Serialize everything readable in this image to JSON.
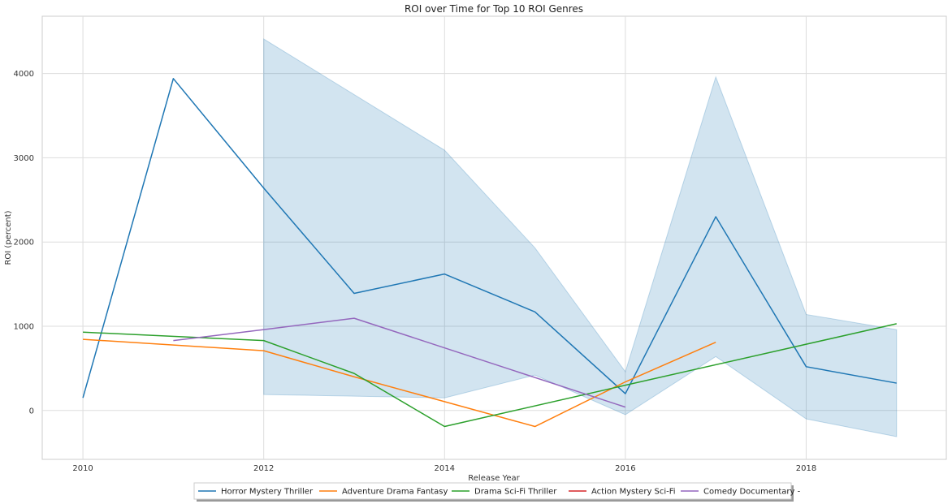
{
  "chart_data": {
    "type": "line",
    "title": "ROI over Time for Top 10 ROI Genres",
    "xlabel": "Release Year",
    "ylabel": "ROI (percent)",
    "xlim": [
      2009.55,
      2019.55
    ],
    "ylim": [
      -580,
      4680
    ],
    "xticks": [
      2010,
      2012,
      2014,
      2016,
      2018
    ],
    "yticks": [
      0,
      1000,
      2000,
      3000,
      4000
    ],
    "grid": true,
    "legend_placement": "bottom-center",
    "series": [
      {
        "name": "Horror Mystery Thriller",
        "color": "#1f77b4",
        "x": [
          2010,
          2011,
          2012,
          2013,
          2014,
          2015,
          2016,
          2017,
          2018,
          2019
        ],
        "y": [
          150,
          3940,
          2640,
          1390,
          1620,
          1170,
          200,
          2300,
          520,
          325
        ],
        "band": [
          {
            "x": 2012,
            "lo": 190,
            "hi": 4410
          },
          {
            "x": 2014,
            "lo": 150,
            "hi": 3090
          },
          {
            "x": 2015,
            "lo": 420,
            "hi": 1930
          },
          {
            "x": 2016,
            "lo": -50,
            "hi": 460
          },
          {
            "x": 2017,
            "lo": 640,
            "hi": 3960
          },
          {
            "x": 2018,
            "lo": -100,
            "hi": 1140
          },
          {
            "x": 2019,
            "lo": -310,
            "hi": 960
          }
        ]
      },
      {
        "name": "Adventure Drama Fantasy",
        "color": "#ff7f0e",
        "x": [
          2010,
          2012,
          2013,
          2015,
          2016,
          2017
        ],
        "y": [
          845,
          710,
          400,
          -190,
          340,
          810
        ]
      },
      {
        "name": "Drama Sci-Fi Thriller",
        "color": "#2ca02c",
        "x": [
          2010,
          2012,
          2013,
          2014,
          2016,
          2019
        ],
        "y": [
          930,
          830,
          440,
          -190,
          300,
          1030
        ]
      },
      {
        "name": "Action Mystery Sci-Fi",
        "color": "#d62728",
        "x": [],
        "y": []
      },
      {
        "name": "Comedy Documentary -",
        "color": "#9467bd",
        "x": [
          2011,
          2012,
          2013,
          2016
        ],
        "y": [
          830,
          960,
          1095,
          40
        ]
      }
    ]
  }
}
